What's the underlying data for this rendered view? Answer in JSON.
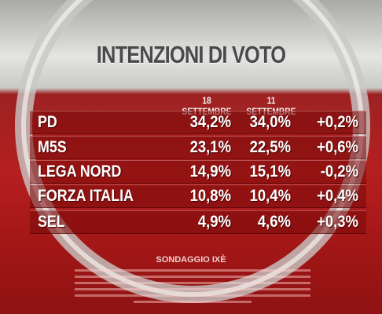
{
  "title": "INTENZIONI DI VOTO",
  "table": {
    "headers": [
      "18 SETTEMBRE",
      "11 SETTEMBRE"
    ],
    "rows": [
      [
        "PD",
        "34,2%",
        "34,0%",
        "+0,2%"
      ],
      [
        "M5S",
        "23,1%",
        "22,5%",
        "+0,6%"
      ],
      [
        "LEGA NORD",
        "14,9%",
        "15,1%",
        "-0,2%"
      ],
      [
        "FORZA ITALIA",
        "10,8%",
        "10,4%",
        "+0,4%"
      ],
      [
        "SEL",
        "4,9%",
        "4,6%",
        "+0,3%"
      ]
    ]
  },
  "source": "SONDAGGIO IXÈ"
}
